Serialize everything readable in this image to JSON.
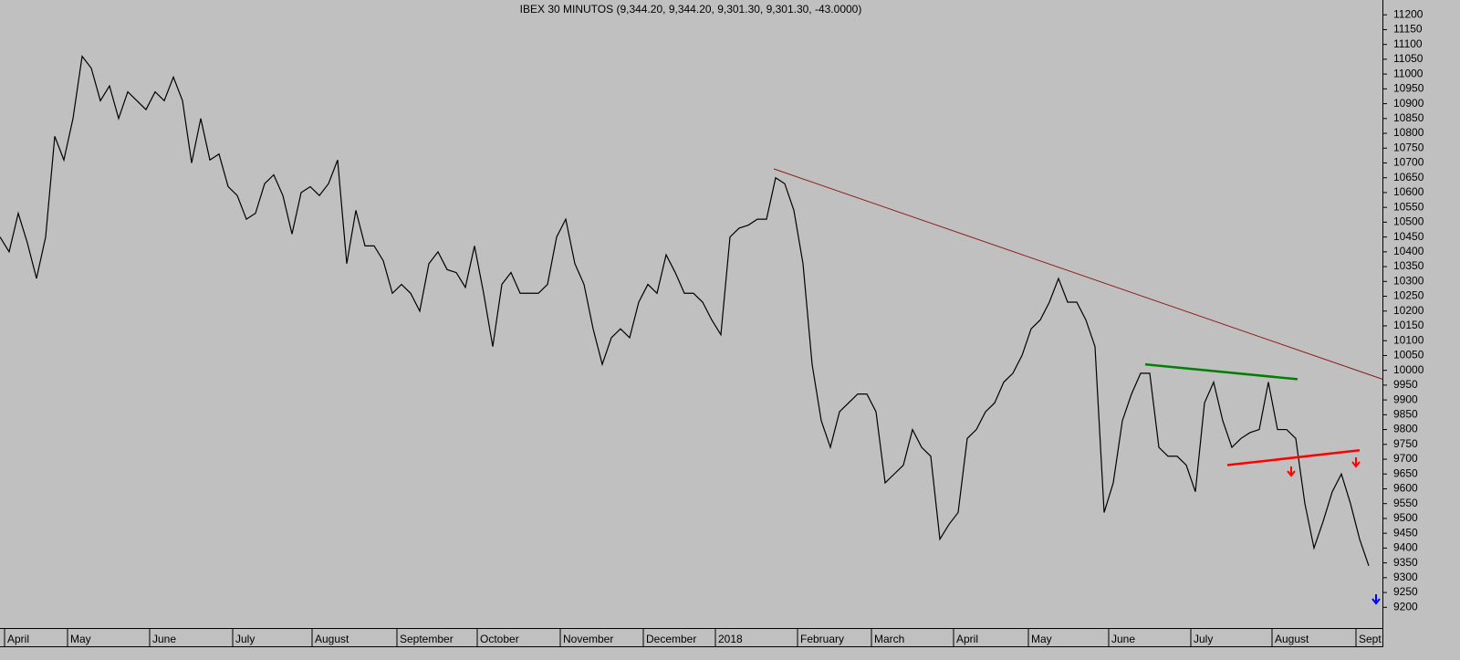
{
  "chart_data": {
    "type": "line",
    "title": "IBEX 30 MINUTOS (9,344.20, 9,344.20, 9,301.30, 9,301.30, -43.0000)",
    "series": [
      {
        "color": "#000000",
        "values": [
          10450,
          10400,
          10530,
          10430,
          10310,
          10450,
          10790,
          10710,
          10850,
          11060,
          11020,
          10910,
          10960,
          10850,
          10940,
          10910,
          10880,
          10940,
          10910,
          10990,
          10910,
          10700,
          10850,
          10710,
          10730,
          10620,
          10590,
          10510,
          10530,
          10630,
          10660,
          10590,
          10460,
          10600,
          10620,
          10590,
          10630,
          10710,
          10360,
          10540,
          10420,
          10420,
          10370,
          10260,
          10290,
          10260,
          10200,
          10360,
          10400,
          10340,
          10330,
          10280,
          10420,
          10260,
          10080,
          10290,
          10330,
          10260,
          10260,
          10260,
          10290,
          10450,
          10510,
          10360,
          10290,
          10140,
          10020,
          10110,
          10140,
          10110,
          10230,
          10290,
          10260,
          10390,
          10330,
          10260,
          10260,
          10230,
          10170,
          10120,
          10450,
          10480,
          10490,
          10510,
          10510,
          10650,
          10630,
          10540,
          10360,
          10020,
          9830,
          9740,
          9860,
          9890,
          9920,
          9920,
          9860,
          9620,
          9650,
          9680,
          9800,
          9740,
          9710,
          9430,
          9480,
          9520,
          9770,
          9800,
          9860,
          9890,
          9960,
          9990,
          10050,
          10140,
          10170,
          10230,
          10310,
          10230,
          10230,
          10170,
          10080,
          9520,
          9620,
          9830,
          9920,
          9990,
          9990,
          9740,
          9710,
          9710,
          9680,
          9590,
          9890,
          9960,
          9830,
          9740,
          9770,
          9790,
          9800,
          9960,
          9800,
          9800,
          9770,
          9550,
          9400,
          9490,
          9590,
          9650,
          9550,
          9430,
          9340
        ]
      }
    ],
    "trendlines": [
      {
        "color": "#8b1a1a",
        "x": [
          84.8,
          151.5
        ],
        "y": [
          10680,
          9970
        ]
      },
      {
        "color": "#008000",
        "x": [
          125.5,
          142.2
        ],
        "y": [
          10020,
          9970
        ]
      },
      {
        "color": "#ff0000",
        "x": [
          134.5,
          149
        ],
        "y": [
          9680,
          9730
        ]
      }
    ],
    "xlim": [
      0,
      151.5
    ],
    "xticks": [
      {
        "value": 0.5,
        "label": "April"
      },
      {
        "value": 7.4,
        "label": "May"
      },
      {
        "value": 16.4,
        "label": "June"
      },
      {
        "value": 25.5,
        "label": "July"
      },
      {
        "value": 34.2,
        "label": "August"
      },
      {
        "value": 43.5,
        "label": "September"
      },
      {
        "value": 52.3,
        "label": "October"
      },
      {
        "value": 61.4,
        "label": "November"
      },
      {
        "value": 70.5,
        "label": "December"
      },
      {
        "value": 78.4,
        "label": "2018"
      },
      {
        "value": 87.4,
        "label": "February"
      },
      {
        "value": 95.5,
        "label": "March"
      },
      {
        "value": 104.5,
        "label": "April"
      },
      {
        "value": 112.7,
        "label": "May"
      },
      {
        "value": 121.5,
        "label": "June"
      },
      {
        "value": 130.5,
        "label": "July"
      },
      {
        "value": 139.4,
        "label": "August"
      },
      {
        "value": 148.6,
        "label": "Sept"
      }
    ],
    "ylim": [
      9130,
      11250
    ],
    "yticks": [
      9200,
      9250,
      9300,
      9350,
      9400,
      9450,
      9500,
      9550,
      9600,
      9650,
      9700,
      9750,
      9800,
      9850,
      9900,
      9950,
      10000,
      10050,
      10100,
      10150,
      10200,
      10250,
      10300,
      10350,
      10400,
      10450,
      10500,
      10550,
      10600,
      10650,
      10700,
      10750,
      10800,
      10850,
      10900,
      10950,
      11000,
      11050,
      11100,
      11150,
      11200
    ]
  }
}
